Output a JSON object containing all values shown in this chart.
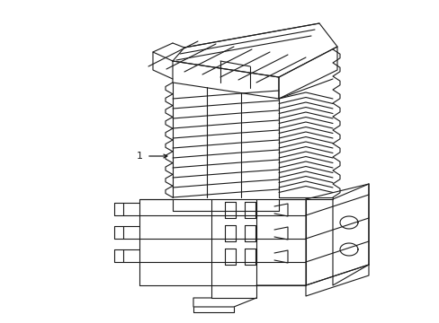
{
  "bg_color": "#ffffff",
  "line_color": "#1a1a1a",
  "lw": 0.8,
  "fig_width": 4.89,
  "fig_height": 3.6,
  "dpi": 100,
  "label": "1"
}
